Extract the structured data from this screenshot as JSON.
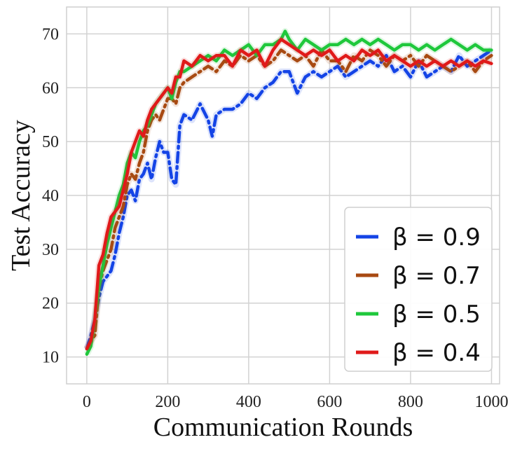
{
  "chart_data": {
    "type": "line",
    "xlabel": "Communication Rounds",
    "ylabel": "Test Accuracy",
    "xlim": [
      -50,
      1020
    ],
    "ylim": [
      5,
      75
    ],
    "xticks": [
      0,
      200,
      400,
      600,
      800,
      1000
    ],
    "yticks": [
      10,
      20,
      30,
      40,
      50,
      60,
      70
    ],
    "grid": true,
    "legend": "bottom-right",
    "series": [
      {
        "name": "β = 0.9",
        "color": "#1444e6",
        "dash": "dashdot",
        "x": [
          0,
          10,
          20,
          30,
          40,
          50,
          60,
          70,
          80,
          90,
          100,
          110,
          120,
          130,
          140,
          150,
          160,
          170,
          180,
          190,
          200,
          210,
          220,
          230,
          240,
          260,
          280,
          300,
          310,
          320,
          340,
          360,
          380,
          400,
          420,
          440,
          460,
          480,
          500,
          520,
          540,
          560,
          580,
          600,
          620,
          640,
          660,
          680,
          700,
          720,
          740,
          760,
          780,
          800,
          820,
          840,
          860,
          880,
          900,
          920,
          940,
          960,
          980,
          1000
        ],
        "y": [
          11.5,
          14,
          17,
          21,
          24,
          25,
          26,
          29,
          33,
          36,
          40,
          41,
          39,
          43,
          44,
          46,
          43,
          47,
          50,
          48,
          48,
          43,
          42,
          53,
          55,
          54,
          57,
          54,
          51,
          55,
          56,
          56,
          57,
          59,
          58,
          60,
          61,
          63,
          63,
          59,
          62,
          63,
          62,
          63,
          64,
          62,
          63,
          64,
          65,
          64,
          66,
          63,
          64,
          62,
          65,
          62,
          63,
          64,
          63,
          66,
          64,
          65,
          66,
          67
        ]
      },
      {
        "name": "β = 0.7",
        "color": "#a84a12",
        "dash": "dashdot",
        "x": [
          0,
          10,
          20,
          30,
          40,
          50,
          60,
          70,
          80,
          90,
          100,
          110,
          120,
          130,
          140,
          150,
          160,
          170,
          180,
          190,
          200,
          210,
          220,
          230,
          240,
          260,
          280,
          300,
          320,
          340,
          360,
          380,
          400,
          420,
          440,
          460,
          480,
          500,
          520,
          540,
          560,
          580,
          600,
          620,
          640,
          660,
          680,
          700,
          720,
          740,
          760,
          780,
          800,
          820,
          840,
          860,
          880,
          900,
          920,
          940,
          960,
          980,
          1000
        ],
        "y": [
          11.5,
          13,
          14,
          23,
          26,
          28,
          30,
          34,
          36,
          38,
          42,
          44,
          43,
          46,
          48,
          52,
          54,
          55,
          54,
          56,
          58,
          58,
          57,
          60,
          61,
          62,
          63,
          64,
          63,
          65,
          64,
          66,
          65,
          66,
          64,
          65,
          67,
          66,
          65,
          66,
          64,
          67,
          65,
          65,
          63,
          66,
          65,
          67,
          66,
          64,
          66,
          65,
          66,
          64,
          66,
          65,
          64,
          63,
          64,
          65,
          63,
          65,
          66
        ]
      },
      {
        "name": "β = 0.5",
        "color": "#1fc83c",
        "dash": "solid",
        "x": [
          0,
          10,
          20,
          30,
          40,
          50,
          60,
          70,
          80,
          90,
          100,
          110,
          120,
          130,
          140,
          150,
          160,
          170,
          180,
          190,
          200,
          210,
          220,
          230,
          240,
          260,
          280,
          300,
          320,
          340,
          360,
          380,
          400,
          420,
          440,
          460,
          480,
          490,
          500,
          520,
          540,
          560,
          580,
          600,
          620,
          640,
          660,
          680,
          700,
          720,
          740,
          760,
          780,
          800,
          820,
          840,
          860,
          880,
          900,
          920,
          940,
          960,
          980,
          1000
        ],
        "y": [
          10.5,
          12,
          17,
          23,
          27,
          31,
          34,
          37,
          40,
          42,
          46,
          48,
          47,
          50,
          52,
          53,
          55,
          57,
          58,
          59,
          60,
          58,
          61,
          63,
          63,
          64,
          65,
          66,
          65,
          67,
          66,
          67,
          68,
          66,
          68,
          68,
          69,
          70.5,
          69,
          67,
          69,
          68,
          67,
          68,
          68,
          69,
          68,
          69,
          68,
          69,
          68,
          67,
          68,
          68,
          67,
          68,
          67,
          68,
          69,
          68,
          67,
          68,
          67,
          67
        ]
      },
      {
        "name": "β = 0.4",
        "color": "#e01a1a",
        "dash": "solid",
        "x": [
          0,
          10,
          20,
          30,
          40,
          50,
          60,
          70,
          80,
          90,
          100,
          110,
          120,
          130,
          140,
          150,
          160,
          170,
          180,
          190,
          200,
          210,
          220,
          230,
          240,
          260,
          280,
          300,
          320,
          340,
          360,
          380,
          400,
          420,
          440,
          460,
          480,
          500,
          520,
          540,
          560,
          580,
          600,
          620,
          640,
          660,
          680,
          700,
          720,
          740,
          760,
          780,
          800,
          820,
          840,
          860,
          880,
          900,
          920,
          940,
          960,
          980,
          1000
        ],
        "y": [
          11.5,
          13,
          17,
          27,
          29,
          33,
          36,
          37,
          38,
          41,
          44,
          48,
          50,
          52,
          51,
          54,
          56,
          57,
          58,
          59,
          60,
          59,
          62,
          62,
          65,
          64,
          66,
          65,
          66,
          66,
          64,
          67,
          66,
          67,
          64,
          67,
          69,
          68,
          67,
          66,
          67,
          66,
          67,
          65,
          66,
          65,
          67,
          66,
          67,
          65,
          66,
          65,
          64,
          65,
          64,
          65,
          64,
          65,
          64,
          65,
          64,
          65,
          64.5
        ]
      }
    ]
  }
}
